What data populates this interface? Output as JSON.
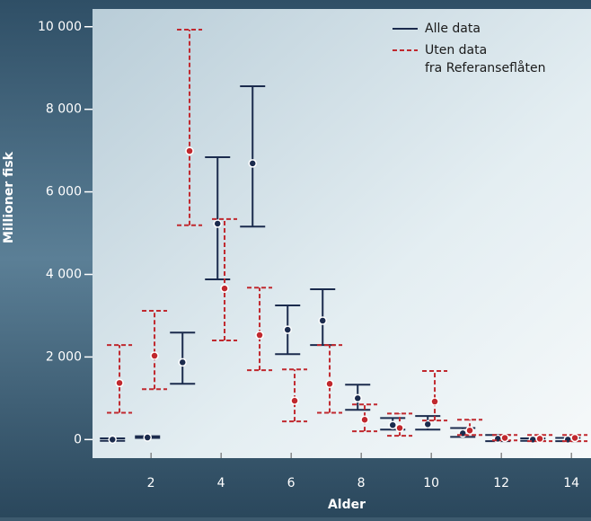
{
  "chart_data": {
    "type": "errorbar",
    "xlabel": "Alder",
    "ylabel": "Millioner fisk",
    "xlim": [
      0.33,
      14.56
    ],
    "xticks": [
      2,
      4,
      6,
      8,
      10,
      12,
      14
    ],
    "ylim": [
      -450,
      10430
    ],
    "yticks": [
      0,
      {
        "value": 2000,
        "label": "2 000"
      },
      {
        "value": 4000,
        "label": "4 000"
      },
      {
        "value": 6000,
        "label": "6 000"
      },
      {
        "value": 8000,
        "label": "8 000"
      },
      {
        "value": 10000,
        "label": "10 000"
      }
    ],
    "legend": "upper right",
    "x": [
      1,
      2,
      3,
      4,
      5,
      6,
      7,
      8,
      9,
      10,
      11,
      12,
      13,
      14
    ],
    "series": [
      {
        "name": "Alle data",
        "color": "#1b2b4d",
        "linestyle": "solid",
        "values": [
          0,
          50,
          1870,
          5230,
          6690,
          2660,
          2880,
          1000,
          350,
          370,
          150,
          20,
          0,
          0
        ],
        "low": [
          -30,
          40,
          1350,
          3880,
          5160,
          2070,
          2290,
          720,
          240,
          240,
          65,
          -40,
          -30,
          -40
        ],
        "high": [
          30,
          80,
          2590,
          6840,
          8560,
          3250,
          3640,
          1330,
          520,
          570,
          280,
          110,
          30,
          40
        ]
      },
      {
        "name": "Uten data\nfra Referanseflåten",
        "color": "#c0282e",
        "linestyle": "dashed",
        "values": [
          1370,
          2030,
          6990,
          3660,
          2530,
          940,
          1350,
          480,
          280,
          920,
          220,
          40,
          20,
          40
        ],
        "low": [
          650,
          1220,
          5190,
          2400,
          1680,
          440,
          650,
          200,
          90,
          460,
          110,
          -20,
          -40,
          -40
        ],
        "high": [
          2290,
          3120,
          9930,
          5340,
          3680,
          1700,
          2290,
          850,
          630,
          1660,
          480,
          110,
          110,
          110
        ]
      }
    ]
  }
}
